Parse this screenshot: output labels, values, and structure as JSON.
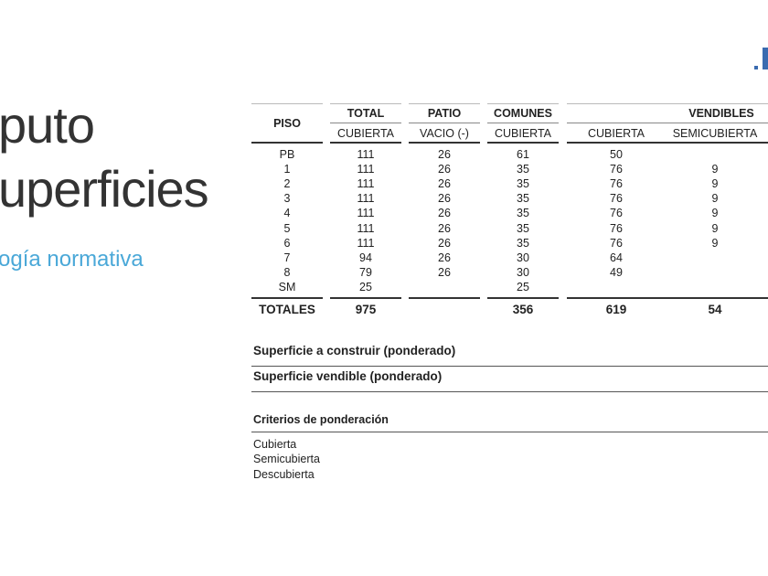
{
  "title": {
    "line1": "puto",
    "line2": "uperficies",
    "subtitle": "ogía normativa"
  },
  "table": {
    "group_headers": [
      "PISO",
      "TOTAL",
      "PATIO",
      "COMUNES",
      "VENDIBLES"
    ],
    "sub_headers": [
      "CUBIERTA",
      "VACIO (-)",
      "CUBIERTA",
      "CUBIERTA",
      "SEMICUBIERTA"
    ],
    "rows": [
      [
        "PB",
        111,
        26,
        61,
        50,
        null
      ],
      [
        "1",
        111,
        26,
        35,
        76,
        9
      ],
      [
        "2",
        111,
        26,
        35,
        76,
        9
      ],
      [
        "3",
        111,
        26,
        35,
        76,
        9
      ],
      [
        "4",
        111,
        26,
        35,
        76,
        9
      ],
      [
        "5",
        111,
        26,
        35,
        76,
        9
      ],
      [
        "6",
        111,
        26,
        35,
        76,
        9
      ],
      [
        "7",
        94,
        26,
        30,
        64,
        null
      ],
      [
        "8",
        79,
        26,
        30,
        49,
        null
      ],
      [
        "SM",
        25,
        null,
        25,
        null,
        null
      ]
    ],
    "totals": [
      "TOTALES",
      975,
      null,
      356,
      619,
      54
    ]
  },
  "summary": [
    "Superficie a construir (ponderado)",
    "Superficie vendible (ponderado)"
  ],
  "criteria": {
    "title": "Criterios de ponderación",
    "items": [
      "Cubierta",
      "Semicubierta",
      "Descubierta"
    ]
  }
}
